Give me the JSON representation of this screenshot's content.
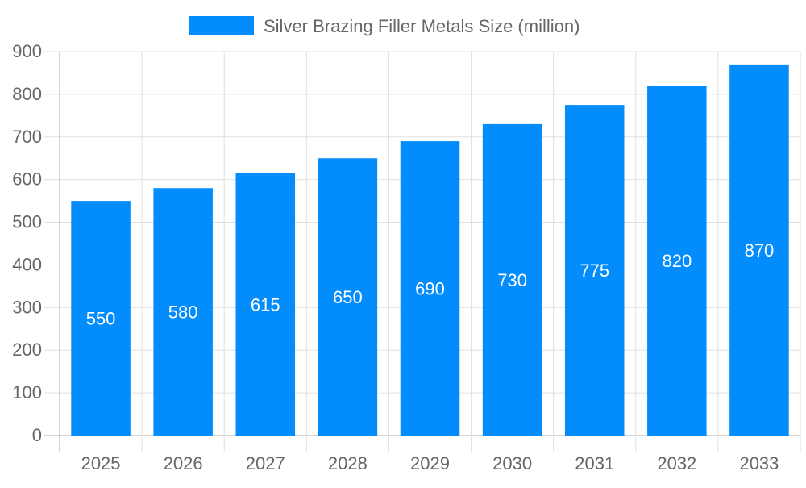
{
  "chart_data": {
    "type": "bar",
    "categories": [
      "2025",
      "2026",
      "2027",
      "2028",
      "2029",
      "2030",
      "2031",
      "2032",
      "2033"
    ],
    "series": [
      {
        "name": "Silver Brazing Filler Metals Size (million)",
        "values": [
          550,
          580,
          615,
          650,
          690,
          730,
          775,
          820,
          870
        ],
        "color": "#038cfc"
      }
    ],
    "yticks": [
      0,
      100,
      200,
      300,
      400,
      500,
      600,
      700,
      800,
      900
    ],
    "ylim": [
      0,
      900
    ],
    "grid": true,
    "legend_position": "top",
    "data_labels": true,
    "colors": {
      "text": "#666666",
      "grid": "#e0e0e0",
      "axis": "#aaaaaa",
      "label": "#ffffff"
    }
  }
}
